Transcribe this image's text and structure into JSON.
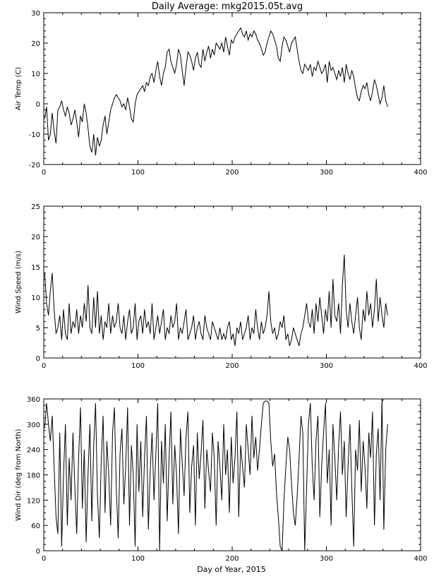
{
  "figure": {
    "title": "Daily Average: mkg2015.05t.avg",
    "xlabel": "Day of Year, 2015"
  },
  "chart_data": [
    {
      "type": "line",
      "ylabel": "Air Temp (C)",
      "xlim": [
        0,
        400
      ],
      "ylim": [
        -20,
        30
      ],
      "xticks": [
        0,
        100,
        200,
        300,
        400
      ],
      "yticks": [
        -20,
        -10,
        0,
        10,
        20,
        30
      ],
      "grid": false,
      "series_color": "#000000",
      "x": [
        1,
        3,
        5,
        7,
        9,
        11,
        13,
        15,
        17,
        19,
        21,
        23,
        25,
        27,
        29,
        31,
        33,
        35,
        37,
        39,
        41,
        43,
        45,
        47,
        49,
        51,
        53,
        55,
        57,
        59,
        61,
        63,
        65,
        67,
        69,
        71,
        73,
        75,
        77,
        79,
        81,
        83,
        85,
        87,
        89,
        91,
        93,
        95,
        97,
        99,
        101,
        103,
        105,
        107,
        109,
        111,
        113,
        115,
        117,
        119,
        121,
        123,
        125,
        127,
        129,
        131,
        133,
        135,
        137,
        139,
        141,
        143,
        145,
        147,
        149,
        151,
        153,
        155,
        157,
        159,
        161,
        163,
        165,
        167,
        169,
        171,
        173,
        175,
        177,
        179,
        181,
        183,
        185,
        187,
        189,
        191,
        193,
        195,
        197,
        199,
        201,
        203,
        205,
        207,
        209,
        211,
        213,
        215,
        217,
        219,
        221,
        223,
        225,
        227,
        229,
        231,
        233,
        235,
        237,
        239,
        241,
        243,
        245,
        247,
        249,
        251,
        253,
        255,
        257,
        259,
        261,
        263,
        265,
        267,
        269,
        271,
        273,
        275,
        277,
        279,
        281,
        283,
        285,
        287,
        289,
        291,
        293,
        295,
        297,
        299,
        301,
        303,
        305,
        307,
        309,
        311,
        313,
        315,
        317,
        319,
        321,
        323,
        325,
        327,
        329,
        331,
        333,
        335,
        337,
        339,
        341,
        343,
        345,
        347,
        349,
        351,
        353,
        355,
        357,
        359,
        361,
        363,
        365
      ],
      "y": [
        -5,
        -1,
        -12,
        -10,
        -3,
        -9,
        -13,
        -2,
        -1,
        1,
        -2,
        -4,
        -1,
        -3,
        -7,
        -5,
        -2,
        -6,
        -11,
        -4,
        -6,
        0,
        -3,
        -8,
        -14,
        -16,
        -10,
        -17,
        -11,
        -14,
        -12,
        -7,
        -4,
        -10,
        -6,
        -2,
        0,
        2,
        3,
        2,
        1,
        -1,
        0,
        -2,
        2,
        -1,
        -5,
        -6,
        0,
        3,
        4,
        5,
        6,
        4,
        7,
        6,
        9,
        10,
        7,
        11,
        14,
        9,
        6,
        10,
        12,
        17,
        18,
        14,
        12,
        10,
        13,
        18,
        16,
        11,
        6,
        12,
        17,
        16,
        14,
        11,
        15,
        17,
        13,
        12,
        18,
        14,
        17,
        19,
        15,
        18,
        16,
        20,
        19,
        18,
        20,
        17,
        22,
        19,
        16,
        21,
        20,
        22,
        23,
        24,
        25,
        23,
        22,
        24,
        21,
        23,
        22,
        24,
        23,
        21,
        20,
        18,
        16,
        17,
        20,
        22,
        24,
        23,
        21,
        19,
        15,
        14,
        19,
        22,
        21,
        19,
        17,
        20,
        21,
        22,
        18,
        14,
        11,
        10,
        13,
        12,
        11,
        13,
        9,
        12,
        11,
        14,
        12,
        10,
        11,
        13,
        7,
        14,
        11,
        12,
        10,
        8,
        11,
        9,
        12,
        7,
        13,
        10,
        8,
        11,
        9,
        5,
        2,
        1,
        4,
        6,
        5,
        7,
        3,
        1,
        4,
        8,
        6,
        3,
        0,
        2,
        6,
        1,
        -1
      ]
    },
    {
      "type": "line",
      "ylabel": "Wind Speed (m/s)",
      "xlim": [
        0,
        400
      ],
      "ylim": [
        0,
        25
      ],
      "xticks": [
        0,
        100,
        200,
        300,
        400
      ],
      "yticks": [
        0,
        5,
        10,
        15,
        20,
        25
      ],
      "grid": false,
      "series_color": "#000000",
      "x": [
        1,
        3,
        5,
        7,
        9,
        11,
        13,
        15,
        17,
        19,
        21,
        23,
        25,
        27,
        29,
        31,
        33,
        35,
        37,
        39,
        41,
        43,
        45,
        47,
        49,
        51,
        53,
        55,
        57,
        59,
        61,
        63,
        65,
        67,
        69,
        71,
        73,
        75,
        77,
        79,
        81,
        83,
        85,
        87,
        89,
        91,
        93,
        95,
        97,
        99,
        101,
        103,
        105,
        107,
        109,
        111,
        113,
        115,
        117,
        119,
        121,
        123,
        125,
        127,
        129,
        131,
        133,
        135,
        137,
        139,
        141,
        143,
        145,
        147,
        149,
        151,
        153,
        155,
        157,
        159,
        161,
        163,
        165,
        167,
        169,
        171,
        173,
        175,
        177,
        179,
        181,
        183,
        185,
        187,
        189,
        191,
        193,
        195,
        197,
        199,
        201,
        203,
        205,
        207,
        209,
        211,
        213,
        215,
        217,
        219,
        221,
        223,
        225,
        227,
        229,
        231,
        233,
        235,
        237,
        239,
        241,
        243,
        245,
        247,
        249,
        251,
        253,
        255,
        257,
        259,
        261,
        263,
        265,
        267,
        269,
        271,
        273,
        275,
        277,
        279,
        281,
        283,
        285,
        287,
        289,
        291,
        293,
        295,
        297,
        299,
        301,
        303,
        305,
        307,
        309,
        311,
        313,
        315,
        317,
        319,
        321,
        323,
        325,
        327,
        329,
        331,
        333,
        335,
        337,
        339,
        341,
        343,
        345,
        347,
        349,
        351,
        353,
        355,
        357,
        359,
        361,
        363,
        365
      ],
      "y": [
        14,
        9,
        7,
        11,
        14,
        8,
        4,
        5,
        7,
        3,
        8,
        4,
        3,
        9,
        4,
        6,
        5,
        8,
        4,
        7,
        5,
        9,
        6,
        12,
        5,
        4,
        10,
        5,
        11,
        4,
        7,
        3,
        6,
        5,
        9,
        4,
        7,
        5,
        6,
        9,
        5,
        4,
        7,
        3,
        6,
        8,
        4,
        5,
        9,
        3,
        6,
        7,
        4,
        8,
        5,
        6,
        4,
        9,
        3,
        5,
        7,
        4,
        6,
        8,
        3,
        5,
        4,
        7,
        5,
        6,
        9,
        3,
        5,
        4,
        6,
        8,
        3,
        4,
        5,
        7,
        3,
        5,
        6,
        4,
        3,
        7,
        5,
        4,
        3,
        6,
        5,
        4,
        3,
        5,
        3,
        4,
        3,
        5,
        6,
        3,
        4,
        2,
        5,
        4,
        6,
        3,
        4,
        5,
        7,
        3,
        5,
        4,
        8,
        5,
        3,
        6,
        4,
        5,
        7,
        11,
        6,
        4,
        5,
        3,
        4,
        6,
        5,
        7,
        3,
        4,
        2,
        3,
        5,
        4,
        3,
        2,
        4,
        5,
        7,
        9,
        6,
        5,
        8,
        4,
        9,
        6,
        10,
        7,
        4,
        8,
        6,
        11,
        5,
        13,
        7,
        6,
        9,
        4,
        12,
        17,
        8,
        5,
        9,
        6,
        4,
        7,
        10,
        5,
        3,
        8,
        6,
        11,
        7,
        9,
        5,
        8,
        13,
        6,
        10,
        7,
        5,
        9,
        7
      ]
    },
    {
      "type": "line",
      "ylabel": "Wind Dir (deg from North)",
      "xlim": [
        0,
        400
      ],
      "ylim": [
        0,
        360
      ],
      "xticks": [
        0,
        100,
        200,
        300,
        400
      ],
      "yticks": [
        0,
        60,
        120,
        180,
        240,
        300,
        360
      ],
      "grid": false,
      "series_color": "#000000",
      "x": [
        1,
        3,
        5,
        7,
        9,
        11,
        13,
        15,
        17,
        19,
        21,
        23,
        25,
        27,
        29,
        31,
        33,
        35,
        37,
        39,
        41,
        43,
        45,
        47,
        49,
        51,
        53,
        55,
        57,
        59,
        61,
        63,
        65,
        67,
        69,
        71,
        73,
        75,
        77,
        79,
        81,
        83,
        85,
        87,
        89,
        91,
        93,
        95,
        97,
        99,
        101,
        103,
        105,
        107,
        109,
        111,
        113,
        115,
        117,
        119,
        121,
        123,
        125,
        127,
        129,
        131,
        133,
        135,
        137,
        139,
        141,
        143,
        145,
        147,
        149,
        151,
        153,
        155,
        157,
        159,
        161,
        163,
        165,
        167,
        169,
        171,
        173,
        175,
        177,
        179,
        181,
        183,
        185,
        187,
        189,
        191,
        193,
        195,
        197,
        199,
        201,
        203,
        205,
        207,
        209,
        211,
        213,
        215,
        217,
        219,
        221,
        223,
        225,
        227,
        229,
        231,
        233,
        235,
        237,
        239,
        241,
        243,
        245,
        247,
        249,
        251,
        253,
        255,
        257,
        259,
        261,
        263,
        265,
        267,
        269,
        271,
        273,
        275,
        277,
        279,
        281,
        283,
        285,
        287,
        289,
        291,
        293,
        295,
        297,
        299,
        301,
        303,
        305,
        307,
        309,
        311,
        313,
        315,
        317,
        319,
        321,
        323,
        325,
        327,
        329,
        331,
        333,
        335,
        337,
        339,
        341,
        343,
        345,
        347,
        349,
        351,
        353,
        355,
        357,
        359,
        361,
        363,
        365
      ],
      "y": [
        290,
        350,
        300,
        260,
        320,
        200,
        80,
        40,
        280,
        10,
        180,
        300,
        60,
        220,
        120,
        280,
        150,
        40,
        220,
        340,
        100,
        240,
        20,
        180,
        300,
        70,
        250,
        350,
        130,
        30,
        210,
        320,
        90,
        260,
        180,
        60,
        280,
        340,
        150,
        30,
        230,
        290,
        110,
        200,
        340,
        60,
        250,
        180,
        10,
        300,
        140,
        260,
        80,
        220,
        320,
        50,
        190,
        280,
        120,
        230,
        350,
        0,
        260,
        160,
        300,
        70,
        220,
        330,
        110,
        250,
        180,
        40,
        290,
        210,
        130,
        270,
        330,
        90,
        200,
        250,
        60,
        280,
        170,
        230,
        310,
        100,
        240,
        190,
        140,
        280,
        220,
        60,
        260,
        200,
        120,
        300,
        180,
        240,
        90,
        270,
        160,
        220,
        330,
        80,
        250,
        200,
        150,
        300,
        240,
        180,
        320,
        220,
        270,
        190,
        240,
        300,
        350,
        355,
        355,
        350,
        260,
        200,
        230,
        140,
        80,
        10,
        0,
        120,
        200,
        270,
        240,
        160,
        90,
        60,
        130,
        220,
        320,
        280,
        0,
        150,
        300,
        350,
        200,
        120,
        260,
        320,
        80,
        200,
        280,
        350,
        160,
        240,
        60,
        300,
        220,
        120,
        250,
        330,
        180,
        260,
        80,
        200,
        300,
        150,
        10,
        240,
        190,
        310,
        140,
        260,
        200,
        100,
        280,
        220,
        330,
        60,
        230,
        290,
        120,
        360,
        50,
        240,
        300
      ]
    }
  ]
}
